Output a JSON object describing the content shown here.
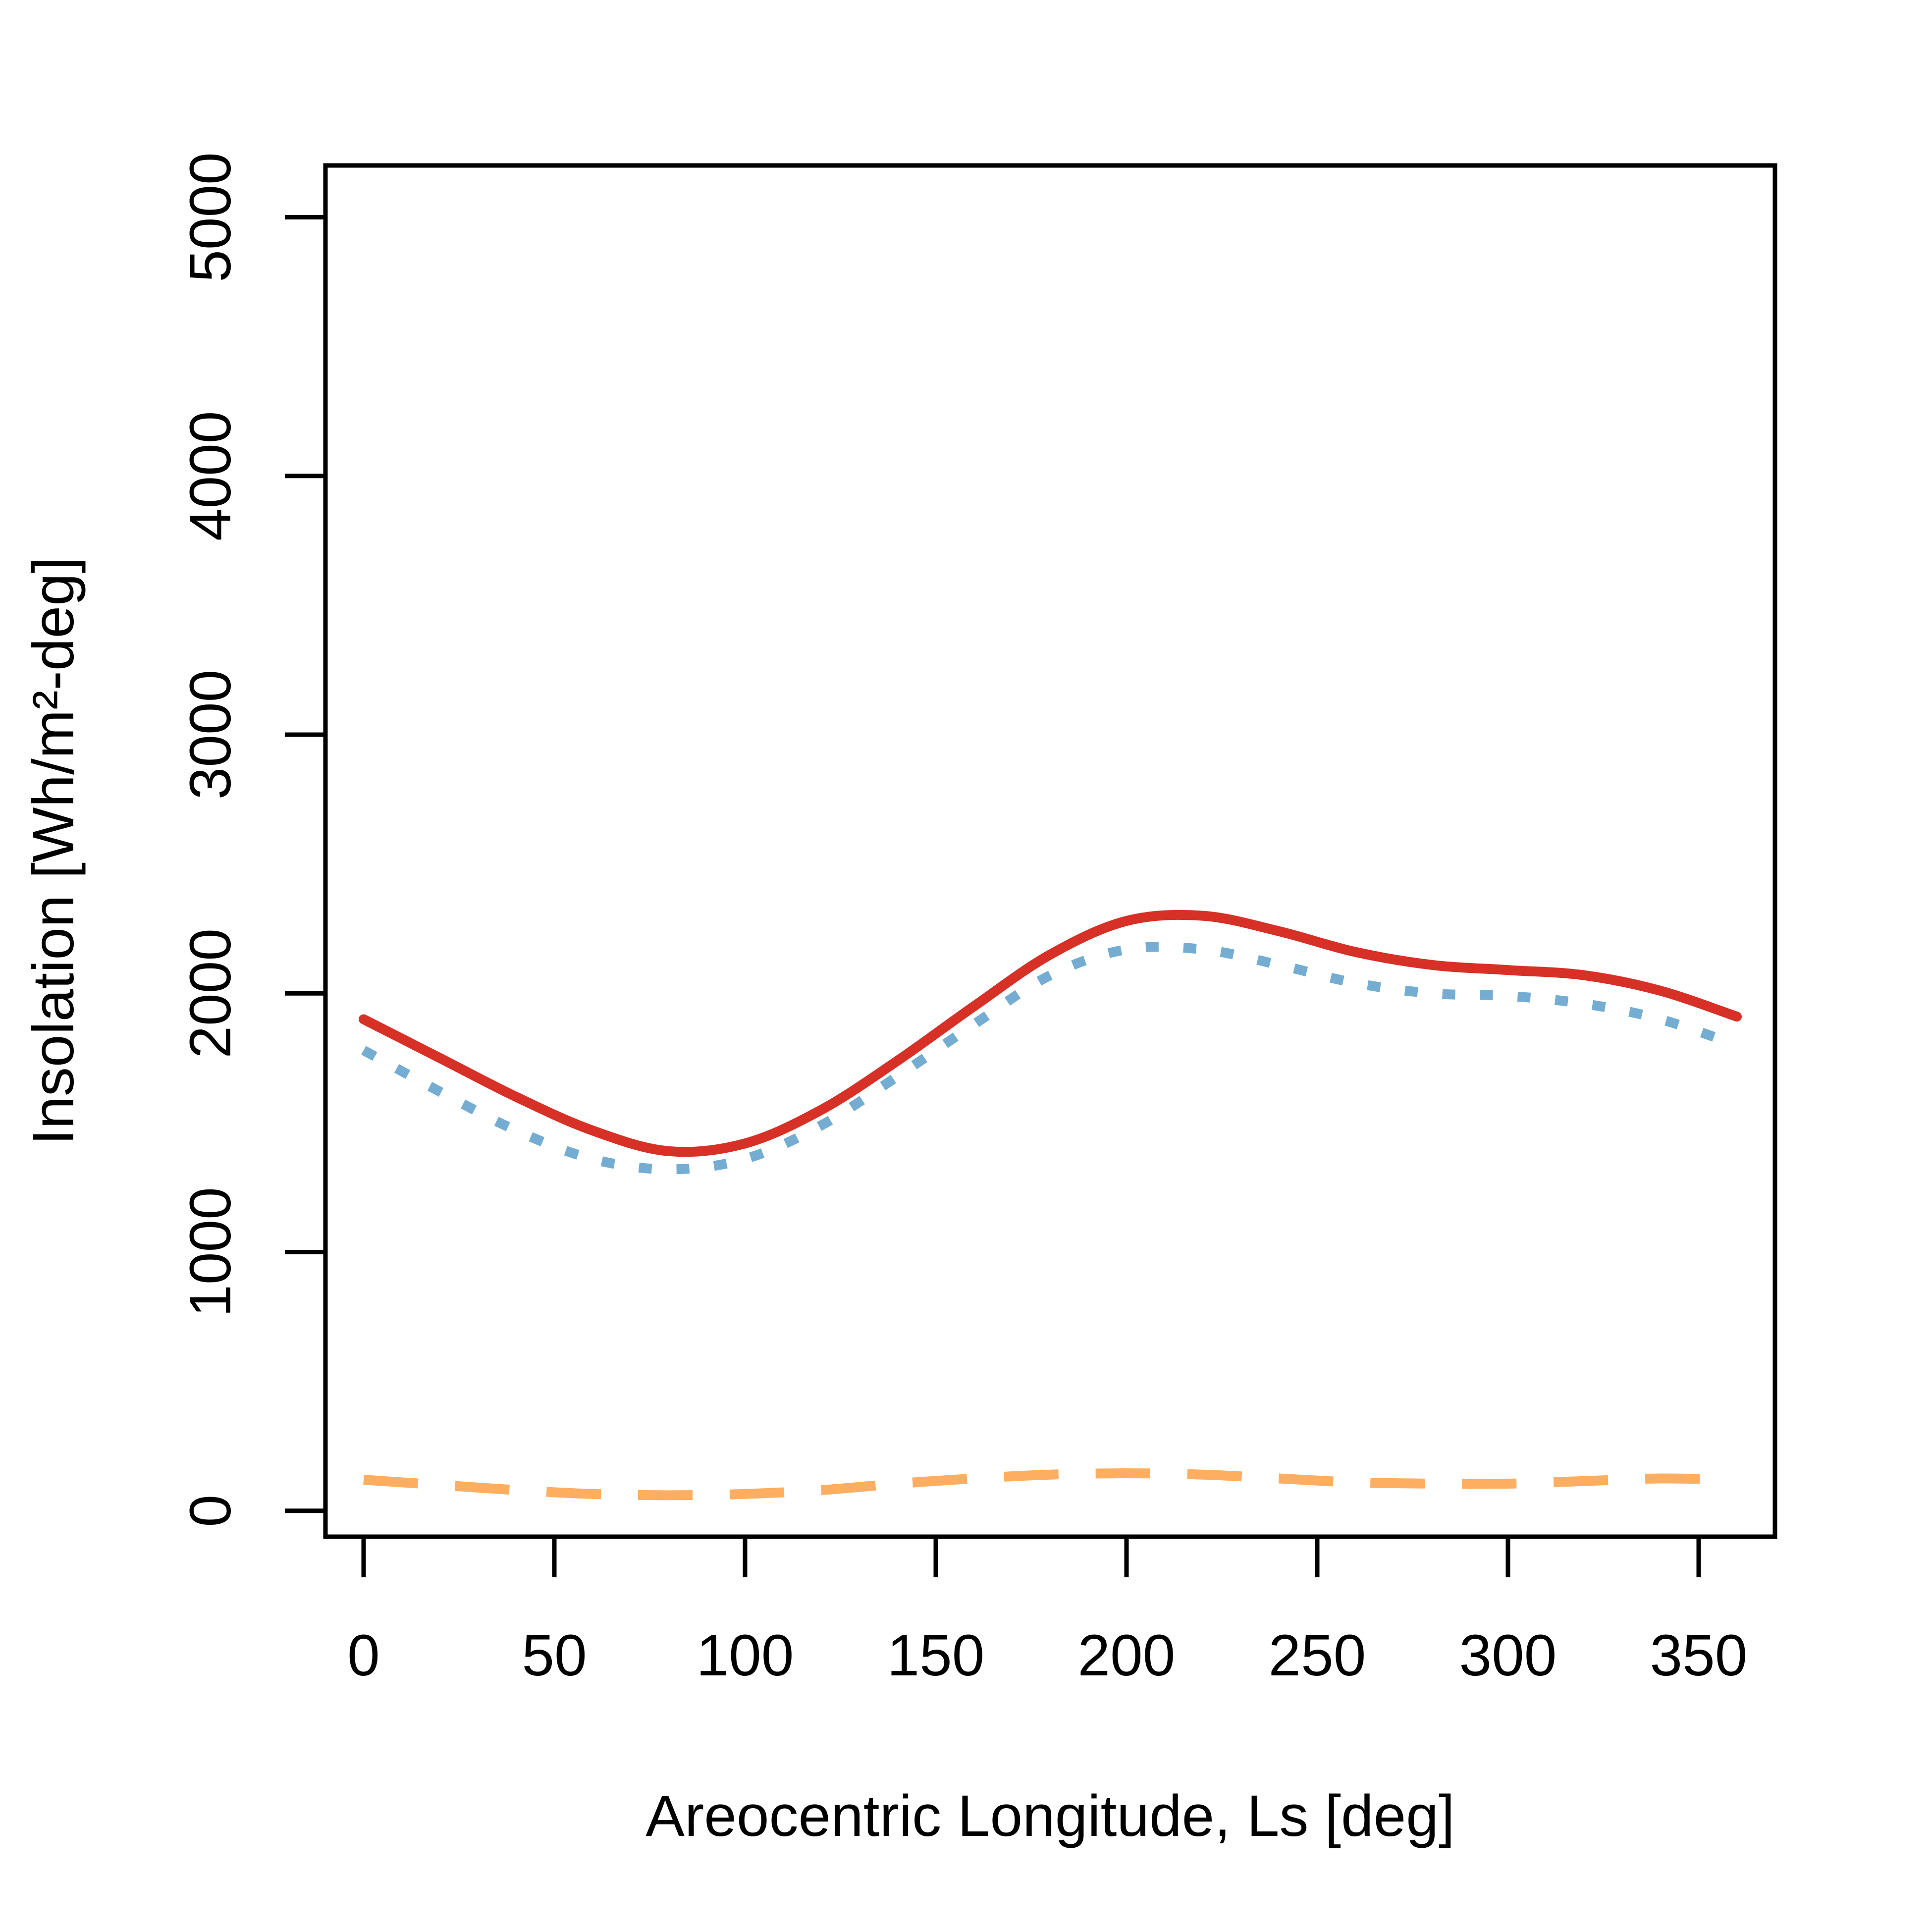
{
  "chart_data": {
    "type": "line",
    "title": "",
    "xlabel": "Areocentric Longitude, Ls [deg]",
    "ylabel": "Insolation [Wh/m²-deg]",
    "xlim": [
      -10,
      370
    ],
    "ylim": [
      -100,
      5200
    ],
    "x_ticks": [
      0,
      50,
      100,
      150,
      200,
      250,
      300,
      350
    ],
    "y_ticks": [
      0,
      1000,
      2000,
      3000,
      4000,
      5000
    ],
    "grid": false,
    "legend": "none",
    "x": [
      0,
      20,
      40,
      60,
      80,
      100,
      120,
      140,
      160,
      180,
      200,
      220,
      240,
      260,
      280,
      300,
      320,
      340,
      360
    ],
    "series": [
      {
        "color": "#d73027",
        "line_style": "solid",
        "values": [
          1900,
          1750,
          1600,
          1470,
          1390,
          1420,
          1550,
          1740,
          1950,
          2150,
          2280,
          2300,
          2240,
          2160,
          2110,
          2090,
          2070,
          2010,
          1910
        ]
      },
      {
        "color": "#74add1",
        "line_style": "dotted",
        "values": [
          1780,
          1620,
          1470,
          1360,
          1320,
          1360,
          1490,
          1680,
          1880,
          2070,
          2170,
          2170,
          2110,
          2040,
          2000,
          1990,
          1960,
          1900,
          1800
        ]
      },
      {
        "color": "#fdae61",
        "line_style": "dashed",
        "values": [
          120,
          100,
          80,
          65,
          60,
          65,
          80,
          105,
          125,
          140,
          145,
          140,
          125,
          110,
          105,
          105,
          115,
          125,
          120
        ]
      }
    ]
  }
}
